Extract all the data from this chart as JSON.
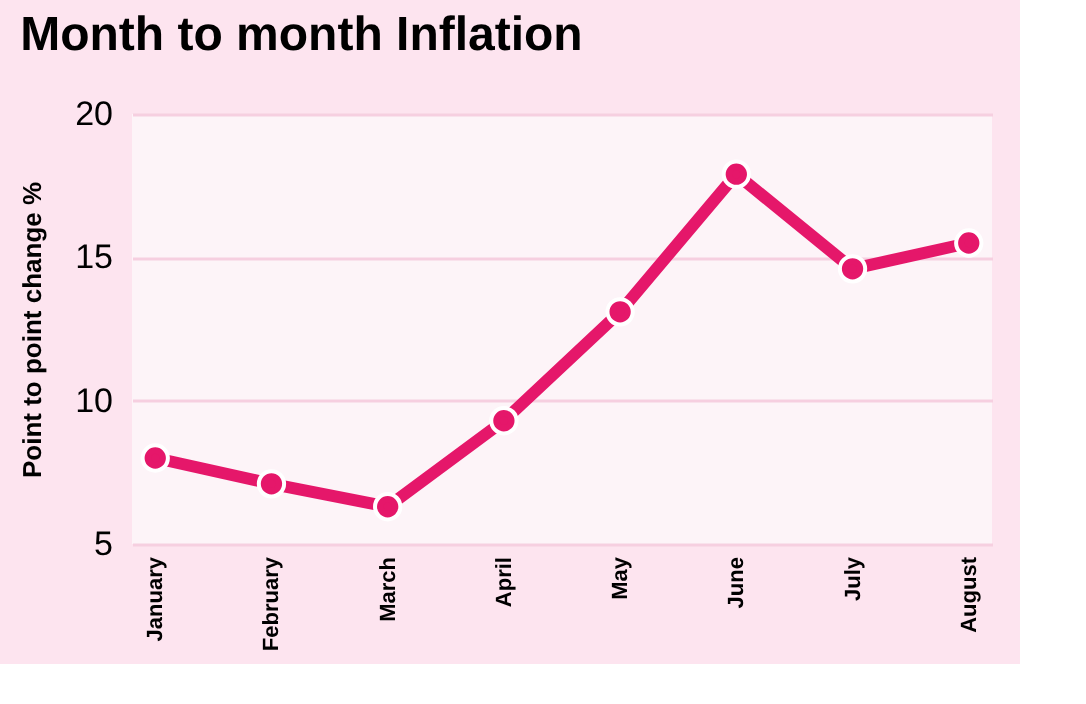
{
  "chart_data": {
    "type": "line",
    "title": "Month to month Inflation",
    "ylabel": "Point to point change %",
    "categories": [
      "January",
      "February",
      "March",
      "April",
      "May",
      "June",
      "July",
      "August"
    ],
    "series": [
      {
        "color": "#e5176a",
        "values": [
          8.0,
          7.1,
          6.3,
          9.3,
          13.1,
          17.9,
          14.6,
          15.5
        ]
      }
    ],
    "ylim": [
      5,
      20
    ],
    "yticks": [
      5,
      10,
      15,
      20
    ],
    "grid": "y",
    "marker": "circle",
    "line_style": "solid",
    "legend": false
  }
}
